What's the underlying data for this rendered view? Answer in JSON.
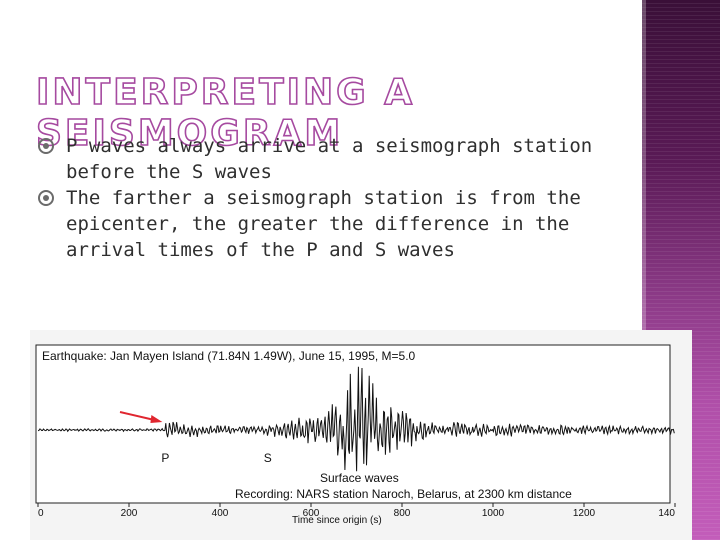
{
  "slide": {
    "title": "INTERPRETING A SEISMOGRAM",
    "bullets": [
      "P waves always arrive at a seismograph station before the S waves",
      "The farther a seismograph station is from the epicenter, the greater the difference in the arrival times of the P and S waves"
    ]
  },
  "seismogram": {
    "header": "Earthquake: Jan Mayen Island (71.84N 1.49W), June 15, 1995, M=5.0",
    "p_label": "P",
    "s_label": "S",
    "surface_label": "Surface waves",
    "recording": "Recording: NARS station Naroch, Belarus, at 2300 km distance",
    "xlabel": "Time since origin (s)",
    "ticks": [
      "0",
      "200",
      "400",
      "600",
      "800",
      "1000",
      "1200",
      "140"
    ],
    "p_arrival_s": 280,
    "s_arrival_s": 505,
    "surface_peak_s": 700
  },
  "colors": {
    "title_outline": "#a64aa0",
    "stripe": "#8c3a87",
    "arrow": "#e0262f"
  }
}
